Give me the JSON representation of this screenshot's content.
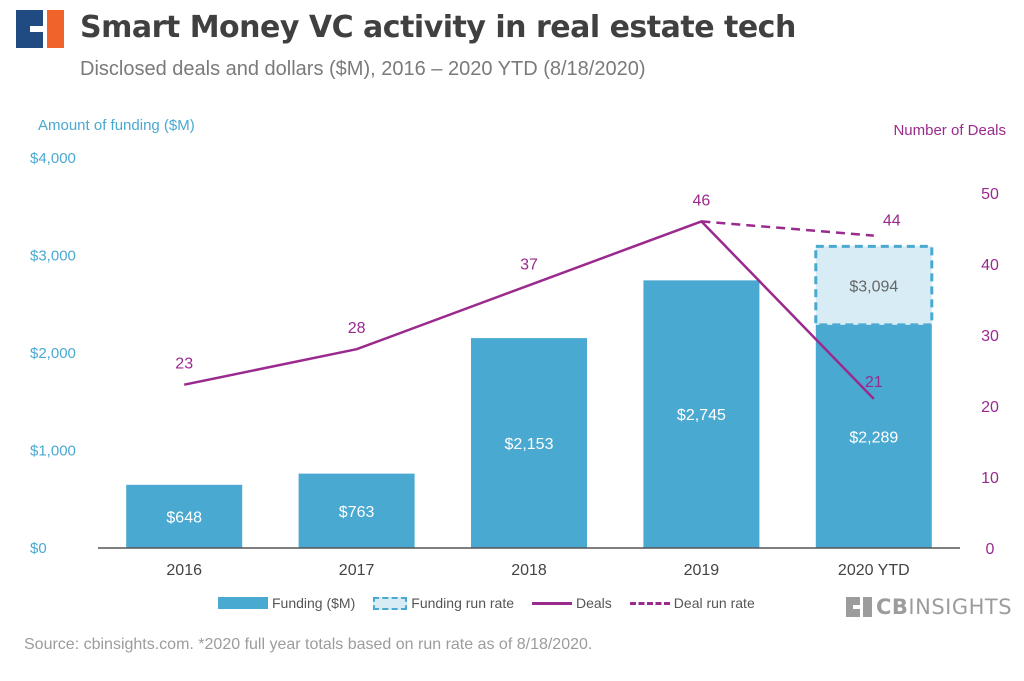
{
  "header": {
    "title": "Smart Money VC activity in real estate tech",
    "subtitle": "Disclosed deals and dollars ($M), 2016 – 2020 YTD (8/18/2020)"
  },
  "colors": {
    "funding": "#4aa9d1",
    "funding_run_rate_fill": "#d7ecf5",
    "deals": "#9b2a8e",
    "left_axis_text": "#4aa9d1",
    "text_dark": "#404040",
    "logo_blue": "#1f4a82",
    "logo_orange": "#f0632b"
  },
  "chart_data": {
    "type": "bar",
    "categories": [
      "2016",
      "2017",
      "2018",
      "2019",
      "2020 YTD"
    ],
    "series": [
      {
        "name": "Funding ($M)",
        "type": "bar",
        "axis": "left",
        "values": [
          648,
          763,
          2153,
          2745,
          2289
        ],
        "labels": [
          "$648",
          "$763",
          "$2,153",
          "$2,745",
          "$2,289"
        ]
      },
      {
        "name": "Funding run rate",
        "type": "bar-dashed",
        "axis": "left",
        "values": [
          null,
          null,
          null,
          null,
          3094
        ],
        "labels": [
          null,
          null,
          null,
          null,
          "$3,094"
        ]
      },
      {
        "name": "Deals",
        "type": "line",
        "axis": "right",
        "values": [
          23,
          28,
          37,
          46,
          21
        ],
        "labels": [
          "23",
          "28",
          "37",
          "46",
          "21"
        ]
      },
      {
        "name": "Deal run rate",
        "type": "line-dashed",
        "axis": "right",
        "values": [
          null,
          null,
          null,
          46,
          44
        ],
        "labels": [
          null,
          null,
          null,
          null,
          "44"
        ]
      }
    ],
    "y_left": {
      "label": "Amount of funding ($M)",
      "ylim": [
        0,
        4000
      ],
      "ticks": [
        0,
        1000,
        2000,
        3000,
        4000
      ],
      "tick_labels": [
        "$0",
        "$1,000",
        "$2,000",
        "$3,000",
        "$4,000"
      ]
    },
    "y_right": {
      "label": "Number of Deals",
      "ylim": [
        0,
        55
      ],
      "ticks": [
        0,
        10,
        20,
        30,
        40,
        50
      ],
      "tick_labels": [
        "0",
        "10",
        "20",
        "30",
        "40",
        "50"
      ]
    },
    "legend": [
      "Funding ($M)",
      "Funding run rate",
      "Deals",
      "Deal run rate"
    ],
    "legend_position": "bottom",
    "grid": false
  },
  "brand": {
    "bold": "CB",
    "light": "INSIGHTS"
  },
  "footer": {
    "source": "Source: cbinsights.com. *2020 full year totals based on run rate as of 8/18/2020."
  }
}
